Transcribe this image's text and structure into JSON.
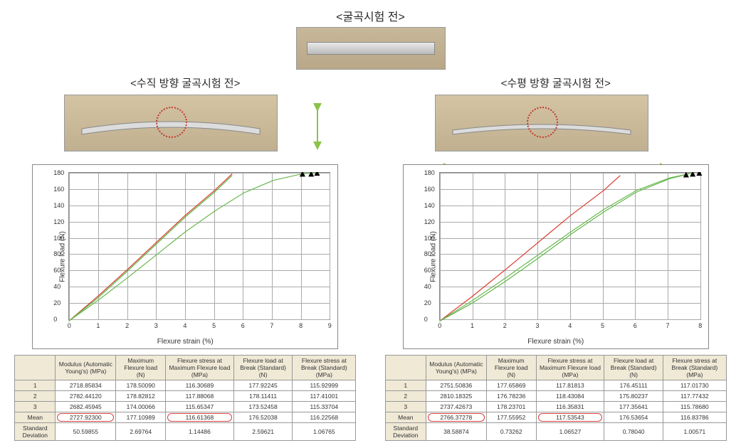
{
  "titles": {
    "top": "<굴곡시험 전>",
    "left": "<수직 방향 굴곡시험 전>",
    "right": "<수평 방향 굴곡시험 전>"
  },
  "chart": {
    "type": "line",
    "ylabel": "Flexure load (N)",
    "xlabel": "Flexure strain (%)",
    "ylim": [
      0,
      180
    ],
    "ytick_step": 20,
    "background_color": "#ffffff",
    "grid_color": "#aaaaaa",
    "line_colors": {
      "red": "#d83a2a",
      "green": "#5fb648",
      "green2": "#6ab850"
    },
    "label_fontsize": 10,
    "tick_fontsize": 9,
    "line_width": 1.2
  },
  "chartLeft": {
    "xlim": [
      0,
      9
    ],
    "xtick_step": 1,
    "series": [
      {
        "color": "#d83a2a",
        "points": [
          [
            0,
            0
          ],
          [
            1,
            30
          ],
          [
            2,
            62
          ],
          [
            3,
            95
          ],
          [
            4,
            128
          ],
          [
            5,
            158
          ],
          [
            5.6,
            178
          ]
        ]
      },
      {
        "color": "#5fb648",
        "points": [
          [
            0,
            0
          ],
          [
            1,
            28
          ],
          [
            2,
            60
          ],
          [
            3,
            93
          ],
          [
            4,
            126
          ],
          [
            5,
            156
          ],
          [
            5.6,
            176
          ]
        ]
      },
      {
        "color": "#6ab850",
        "points": [
          [
            0,
            0
          ],
          [
            1,
            25
          ],
          [
            2,
            52
          ],
          [
            3,
            80
          ],
          [
            4,
            108
          ],
          [
            5,
            133
          ],
          [
            6,
            155
          ],
          [
            7,
            170
          ],
          [
            8,
            178
          ],
          [
            8.5,
            179
          ]
        ]
      }
    ],
    "markers": [
      [
        8.0,
        178
      ],
      [
        8.3,
        178
      ],
      [
        8.5,
        179
      ]
    ]
  },
  "chartRight": {
    "xlim": [
      0,
      8
    ],
    "xtick_step": 1,
    "series": [
      {
        "color": "#d83a2a",
        "points": [
          [
            0,
            0
          ],
          [
            1,
            30
          ],
          [
            2,
            62
          ],
          [
            3,
            95
          ],
          [
            4,
            128
          ],
          [
            5,
            158
          ],
          [
            5.5,
            176
          ]
        ]
      },
      {
        "color": "#5fb648",
        "points": [
          [
            0,
            0
          ],
          [
            1,
            22
          ],
          [
            2,
            48
          ],
          [
            3,
            76
          ],
          [
            4,
            105
          ],
          [
            5,
            132
          ],
          [
            6,
            156
          ],
          [
            7,
            172
          ],
          [
            7.6,
            178
          ]
        ]
      },
      {
        "color": "#6ab850",
        "points": [
          [
            0,
            0
          ],
          [
            1,
            25
          ],
          [
            2,
            52
          ],
          [
            3,
            80
          ],
          [
            4,
            108
          ],
          [
            5,
            135
          ],
          [
            6,
            158
          ],
          [
            7,
            173
          ],
          [
            7.7,
            179
          ]
        ]
      }
    ],
    "markers": [
      [
        7.5,
        177
      ],
      [
        7.7,
        178
      ],
      [
        7.9,
        179
      ]
    ]
  },
  "columns": [
    "Modulus (Automatic Young's) (MPa)",
    "Maximum Flexure load (N)",
    "Flexure stress at Maximum Flexure load (MPa)",
    "Flexure load at Break (Standard) (N)",
    "Flexure stress at Break (Standard) (MPa)"
  ],
  "rowLabels": [
    "1",
    "2",
    "3",
    "Mean",
    "Standard Deviation"
  ],
  "tableLeft": {
    "rows": [
      [
        "2718.85834",
        "178.50090",
        "116.30689",
        "177.92245",
        "115.92999"
      ],
      [
        "2782.44120",
        "178.82812",
        "117.88068",
        "178.11411",
        "117.41001"
      ],
      [
        "2682.45945",
        "174.00066",
        "115.65347",
        "173.52458",
        "115.33704"
      ],
      [
        "2727.92300",
        "177.10989",
        "116.61368",
        "176.52038",
        "116.22568"
      ],
      [
        "50.59855",
        "2.69764",
        "1.14486",
        "2.59621",
        "1.06765"
      ]
    ],
    "highlightRow": 3,
    "highlightCols": [
      0,
      2
    ]
  },
  "tableRight": {
    "rows": [
      [
        "2751.50836",
        "177.65869",
        "117.81813",
        "176.45111",
        "117.01730"
      ],
      [
        "2810.18325",
        "176.78236",
        "118.43084",
        "175.80237",
        "117.77432"
      ],
      [
        "2737.42673",
        "178.23701",
        "116.35831",
        "177.35641",
        "115.78680"
      ],
      [
        "2766.37278",
        "177.55952",
        "117.53543",
        "176.53654",
        "116.83786"
      ],
      [
        "38.58874",
        "0.73262",
        "1.06527",
        "0.78040",
        "1.00571"
      ]
    ],
    "highlightRow": 3,
    "highlightCols": [
      0,
      2
    ]
  },
  "arrows": {
    "color": "#8bc34a",
    "stroke": 2
  },
  "circle": {
    "color": "#c0392b"
  },
  "specimen_colors": {
    "bg": "#c8b89a",
    "bar": "#d8d8d8"
  }
}
